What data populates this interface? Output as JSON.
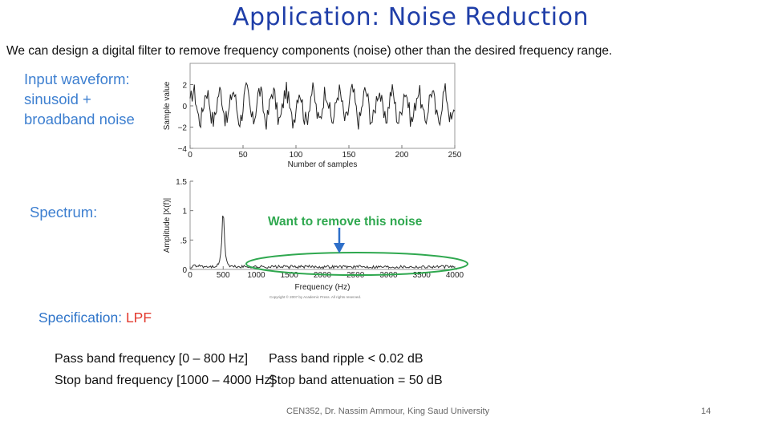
{
  "slide": {
    "title": "Application: Noise Reduction",
    "intro": "We can design a digital filter to remove frequency components (noise) other than the desired frequency range.",
    "input_label": "Input waveform: sinusoid + broadband noise",
    "spectrum_label": "Spectrum:",
    "specification": {
      "heading": "Specification: ",
      "type": "LPF",
      "pass_band_freq": "Pass band frequency [0 – 800 Hz]",
      "stop_band_freq": "Stop band frequency [1000 – 4000 Hz]",
      "pass_band_ripple": "Pass band ripple < 0.02 dB",
      "stop_band_atten": "Stop band attenuation = 50 dB"
    },
    "footer": "CEN352, Dr. Nassim Ammour, King Saud University",
    "page_number": "14"
  },
  "colors": {
    "title": "#1f3ea8",
    "label": "#3d7fd0",
    "annotation": "#2fa84f",
    "arrow": "#2e6fc9",
    "lpf": "#e33b2f"
  },
  "chart_data": [
    {
      "type": "line",
      "xlabel": "Number of samples",
      "ylabel": "Sample value",
      "xlim": [
        0,
        250
      ],
      "ylim": [
        -4,
        4
      ],
      "xticks": [
        0,
        50,
        100,
        150,
        200,
        250
      ],
      "yticks": [
        -4,
        -2,
        0,
        2
      ],
      "grid": false,
      "series": [
        {
          "period_samples": 12.5,
          "sinusoid_amplitude": 1.4,
          "noise_range": [
            -2.5,
            2.5
          ]
        }
      ]
    },
    {
      "type": "line",
      "xlabel": "Frequency (Hz)",
      "ylabel": "Amplitude |X(f)|",
      "xlim": [
        0,
        4000
      ],
      "ylim": [
        0,
        1.5
      ],
      "xticks": [
        0,
        500,
        1000,
        1500,
        2000,
        2500,
        3000,
        3500,
        4000
      ],
      "ytick_labels": [
        "0",
        ".5",
        "1",
        "1.5"
      ],
      "grid": false,
      "peak": {
        "x": 500,
        "y": 1.2
      },
      "noise_floor": [
        0.02,
        0.07
      ],
      "annotation": "Want to remove this noise",
      "copyright": "Copyright © 2007 by Academic Press. All rights reserved."
    }
  ]
}
